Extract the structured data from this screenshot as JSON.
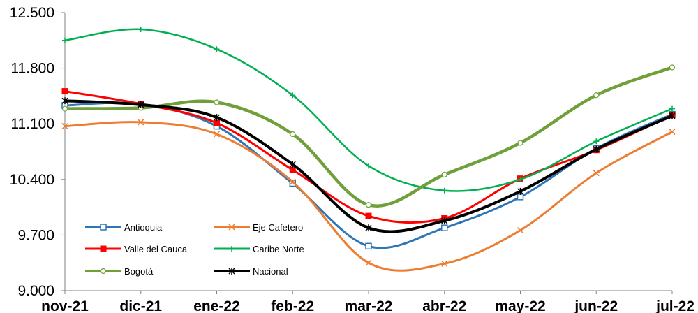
{
  "chart_data": {
    "type": "line",
    "title": "",
    "xlabel": "",
    "ylabel": "",
    "categories": [
      "nov-21",
      "dic-21",
      "ene-22",
      "feb-22",
      "mar-22",
      "abr-22",
      "may-22",
      "jun-22",
      "jul-22"
    ],
    "ylim": [
      9000,
      12500
    ],
    "yticks": [
      9000,
      9700,
      10400,
      11100,
      11800,
      12500
    ],
    "ytick_labels": [
      "9.000",
      "9.700",
      "10.400",
      "11.100",
      "11.800",
      "12.500"
    ],
    "grid": false,
    "legend_position": "bottom-left",
    "series": [
      {
        "name": "Antioquia",
        "color": "#2e75b6",
        "marker": "square-open",
        "values": [
          11330,
          11350,
          11070,
          10350,
          9560,
          9790,
          10180,
          10790,
          11220
        ]
      },
      {
        "name": "Eje Cafetero",
        "color": "#ed7d31",
        "marker": "x",
        "values": [
          11070,
          11120,
          10970,
          10370,
          9350,
          9340,
          9760,
          10480,
          11000
        ]
      },
      {
        "name": "Valle del Cauca",
        "color": "#ff0000",
        "marker": "square-filled",
        "values": [
          11510,
          11350,
          11110,
          10520,
          9940,
          9910,
          10410,
          10770,
          11210
        ]
      },
      {
        "name": "Caribe Norte",
        "color": "#00b050",
        "marker": "plus",
        "values": [
          12150,
          12290,
          12040,
          11460,
          10570,
          10260,
          10400,
          10880,
          11290
        ]
      },
      {
        "name": "Bogotá",
        "color": "#70a03a",
        "marker": "circle-open",
        "values": [
          11290,
          11300,
          11370,
          10970,
          10080,
          10460,
          10860,
          11460,
          11810
        ]
      },
      {
        "name": "Nacional",
        "color": "#000000",
        "marker": "star",
        "values": [
          11390,
          11340,
          11180,
          10590,
          9790,
          9880,
          10250,
          10780,
          11200
        ]
      }
    ]
  }
}
